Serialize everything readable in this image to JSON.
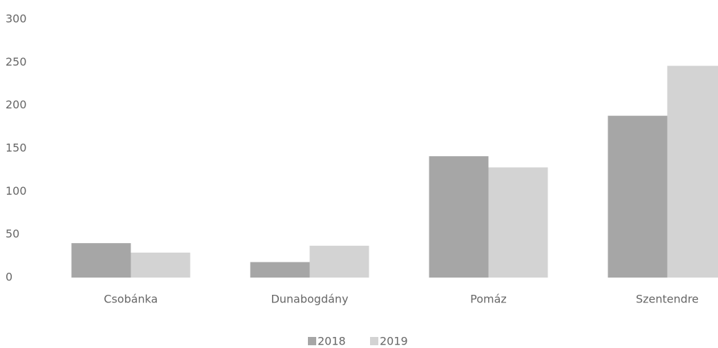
{
  "chart_data": {
    "type": "bar",
    "categories": [
      "Csobánka",
      "Dunabogdány",
      "Pomáz",
      "Szentendre"
    ],
    "series": [
      {
        "name": "2018",
        "color": "#a6a6a6",
        "values": [
          40,
          18,
          141,
          188
        ]
      },
      {
        "name": "2019",
        "color": "#d3d3d3",
        "values": [
          29,
          37,
          128,
          246
        ]
      }
    ],
    "ylim": [
      0,
      300
    ],
    "yticks": [
      0,
      50,
      100,
      150,
      200,
      250,
      300
    ],
    "grid": false,
    "legend": "bottom"
  }
}
